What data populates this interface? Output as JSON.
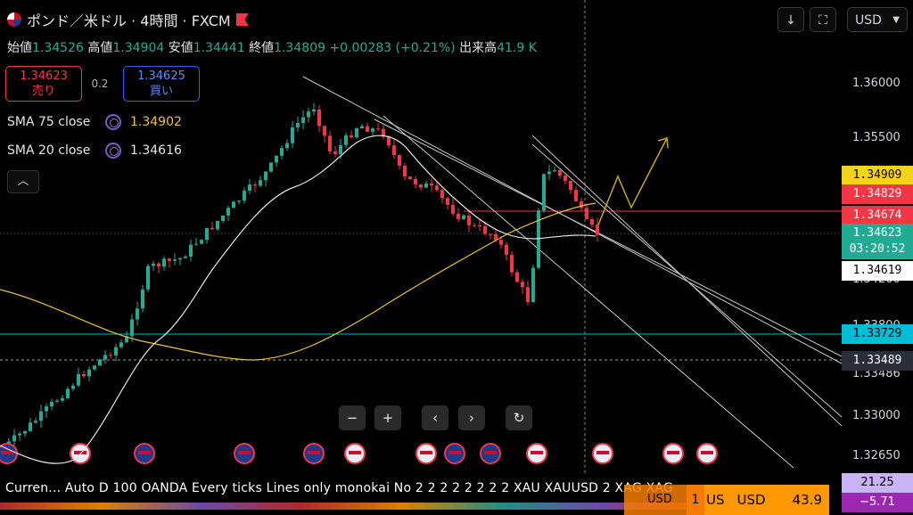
{
  "header": {
    "title": "ポンド／米ドル · 4時間 · FXCM"
  },
  "ohlc": {
    "open_label": "始値",
    "open": "1.34526",
    "high_label": "高値",
    "high": "1.34904",
    "low_label": "安値",
    "low": "1.34441",
    "close_label": "終値",
    "close": "1.34809",
    "change": "+0.00283 (+0.21%)",
    "volume_label": "出来高",
    "volume": "41.9 K"
  },
  "trade": {
    "sell_price": "1.34623",
    "sell_label": "売り",
    "spread": "0.2",
    "buy_price": "1.34625",
    "buy_label": "買い"
  },
  "indicators": [
    {
      "name": "SMA 75 close",
      "value": "1.34902",
      "color": "#f0c419"
    },
    {
      "name": "SMA 20 close",
      "value": "1.34616",
      "color": "#e6e6e6"
    }
  ],
  "toolbar": {
    "download_icon": "arrow-down-icon",
    "fullscreen_icon": "fullscreen-icon",
    "currency": "USD"
  },
  "price_axis": {
    "ticks": [
      "1.36000",
      "1.35500",
      "1.35000",
      "1.34200",
      "1.33800",
      "1.33486",
      "1.33000",
      "1.32650"
    ]
  },
  "price_labels": {
    "sma75": "1.34909",
    "high_line": "1.34829",
    "red_line": "1.34674",
    "last": "1.34623",
    "countdown": "03:20:52",
    "sma20": "1.34619",
    "cyan_line": "1.33729",
    "dashed_line": "1.33489"
  },
  "navigation": {
    "zoom_out": "−",
    "zoom_in": "+",
    "prev": "‹",
    "next": "›",
    "reset": "↻"
  },
  "bottom_bar": {
    "ticker_text": "Curren...   Auto D 100 OANDA Every ticks Lines only monokai No 2 2 2 2 2 2 2 2 XAU XAUUSD 2 XAG XAG",
    "chip_1": "USD",
    "chip_1_prefix": "1",
    "chip_2": "US",
    "chip_2_currency": "USD",
    "chip_2_value": "43.9",
    "right_top": "21.25",
    "right_bottom": "−5.71"
  },
  "colors": {
    "up": "#22ab94",
    "down": "#f23645",
    "sma75": "#f0c419",
    "sma20": "#e6e6e6",
    "cyan": "#00bcd4",
    "buy_border": "#2962ff"
  }
}
